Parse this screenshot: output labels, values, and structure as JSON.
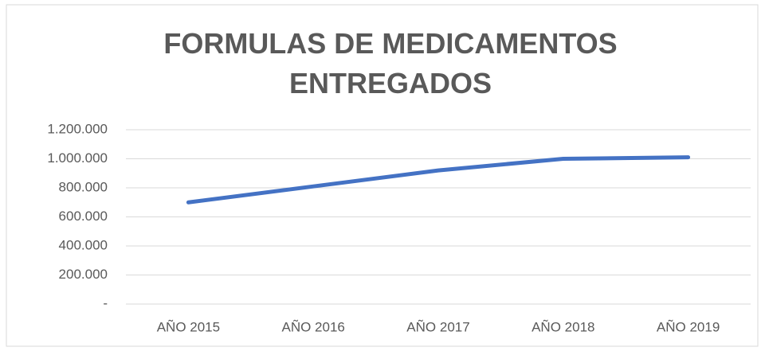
{
  "chart_data": {
    "type": "line",
    "title": "FORMULAS DE MEDICAMENTOS ENTREGADOS",
    "categories": [
      "AÑO 2015",
      "AÑO 2016",
      "AÑO 2017",
      "AÑO 2018",
      "AÑO 2019"
    ],
    "values": [
      700000,
      810000,
      920000,
      1000000,
      1010000
    ],
    "color": "#4472c4",
    "ylim": [
      0,
      1200000
    ],
    "yticks": [
      {
        "value": 0,
        "label": "-"
      },
      {
        "value": 200000,
        "label": "200.000"
      },
      {
        "value": 400000,
        "label": "400.000"
      },
      {
        "value": 600000,
        "label": "600.000"
      },
      {
        "value": 800000,
        "label": "800.000"
      },
      {
        "value": 1000000,
        "label": "1.000.000"
      },
      {
        "value": 1200000,
        "label": "1.200.000"
      }
    ],
    "grid": true
  }
}
